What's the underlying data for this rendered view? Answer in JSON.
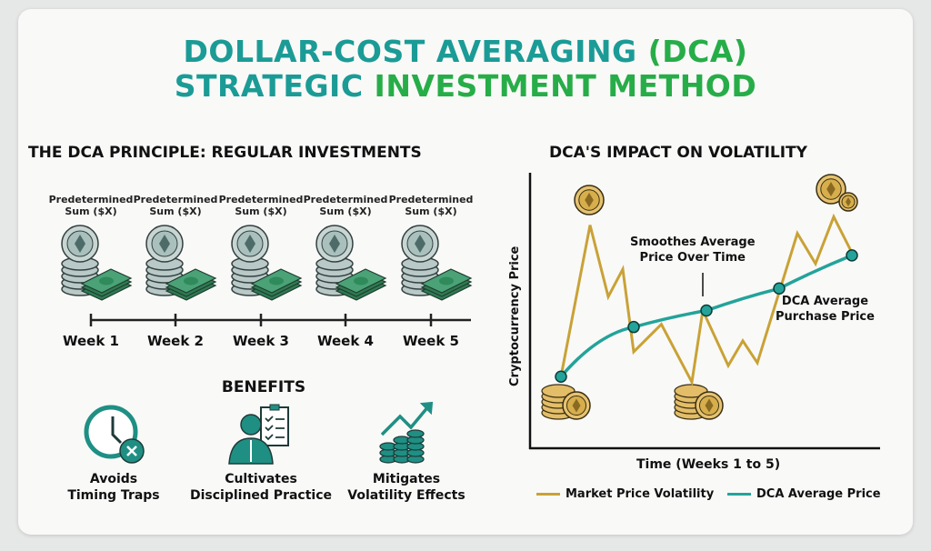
{
  "title": {
    "line1_a": "DOLLAR-COST AVERAGING",
    "line1_b": "(DCA)",
    "line2_a": "STRATEGIC",
    "line2_b": "INVESTMENT METHOD"
  },
  "colors": {
    "teal": "#1b9b96",
    "green": "#27ad48",
    "gold": "#c9a236",
    "dca_line": "#23a39a",
    "cash": "#2f8a5c"
  },
  "principle": {
    "heading": "THE DCA PRINCIPLE: REGULAR INVESTMENTS",
    "weeks": [
      {
        "caption1": "Predetermined",
        "caption2": "Sum ($X)",
        "label": "Week 1"
      },
      {
        "caption1": "Predetermined",
        "caption2": "Sum ($X)",
        "label": "Week 2"
      },
      {
        "caption1": "Predetermined",
        "caption2": "Sum ($X)",
        "label": "Week 3"
      },
      {
        "caption1": "Predetermined",
        "caption2": "Sum ($X)",
        "label": "Week 4"
      },
      {
        "caption1": "Predetermined",
        "caption2": "Sum ($X)",
        "label": "Week 5"
      }
    ]
  },
  "benefits": {
    "heading": "BENEFITS",
    "items": [
      {
        "icon": "clock-x-icon",
        "line1": "Avoids",
        "line2": "Timing Traps"
      },
      {
        "icon": "person-checklist-icon",
        "line1": "Cultivates",
        "line2": "Disciplined Practice"
      },
      {
        "icon": "coins-growth-icon",
        "line1": "Mitigates",
        "line2": "Volatility Effects"
      }
    ]
  },
  "chart_data": {
    "type": "line",
    "title": "DCA'S IMPACT ON VOLATILITY",
    "xlabel": "Time (Weeks 1 to 5)",
    "ylabel": "Cryptocurrency Price",
    "xlim": [
      1,
      5
    ],
    "ylim": [
      0,
      100
    ],
    "grid": false,
    "legend_position": "bottom",
    "series": [
      {
        "name": "Market Price Volatility",
        "color": "#c9a236",
        "x": [
          1.0,
          1.4,
          1.65,
          1.85,
          2.0,
          2.38,
          2.8,
          2.95,
          3.3,
          3.5,
          3.7,
          4.25,
          4.5,
          4.75,
          5.0
        ],
        "y": [
          26,
          81,
          55,
          65,
          35,
          45,
          24,
          50,
          30,
          39,
          31,
          78,
          67,
          84,
          71
        ]
      },
      {
        "name": "DCA Average Price",
        "color": "#23a39a",
        "x": [
          1,
          2,
          3,
          4,
          5
        ],
        "y": [
          26,
          44,
          50,
          58,
          70
        ]
      }
    ],
    "annotations": [
      {
        "line1": "Smoothes Average",
        "line2": "Price Over Time"
      },
      {
        "line1": "DCA Average",
        "line2": "Purchase Price"
      }
    ]
  }
}
